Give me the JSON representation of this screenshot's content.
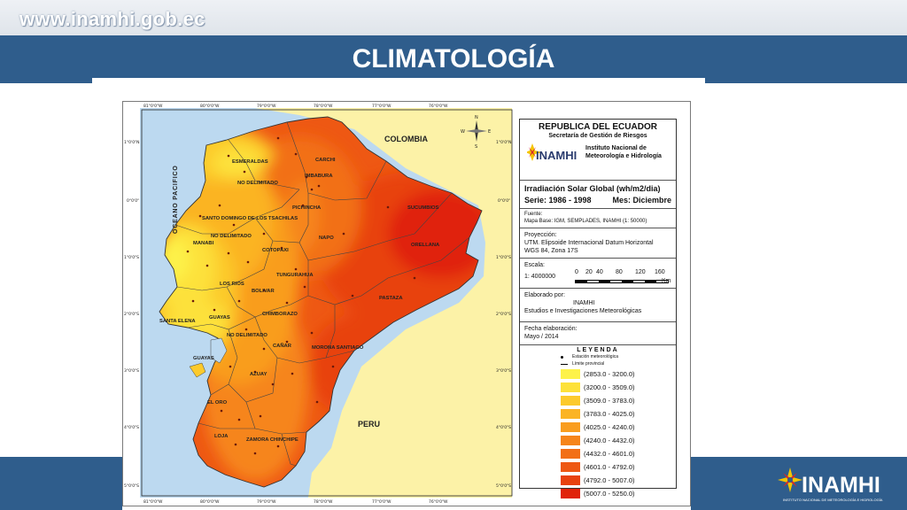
{
  "header": {
    "site_url": "www.inamhi.gob.ec",
    "title": "CLIMATOLOGÍA"
  },
  "footer_logo": {
    "text": "INAMHI",
    "subtext": "INSTITUTO NACIONAL DE METEOROLOGÍA E HIDROLOGÍA"
  },
  "map": {
    "country_labels": [
      "COLOMBIA",
      "PERU"
    ],
    "ocean_label": "OCEANO PACIFICO",
    "province_labels": [
      "ESMERALDAS",
      "CARCHI",
      "IMBABURA",
      "NO DELIMITADO",
      "PICHINCHA",
      "SANTO DOMINGO DE LOS TSACHILAS",
      "SUCUMBIOS",
      "MANABI",
      "NO DELIMITADO",
      "NAPO",
      "COTOPAXI",
      "ORELLANA",
      "LOS RIOS",
      "TUNGURAHUA",
      "BOLIVAR",
      "PASTAZA",
      "CHIMBORAZO",
      "SANTA ELENA",
      "GUAYAS",
      "NO DELIMITADO",
      "CAÑAR",
      "MORONA SANTIAGO",
      "GUAYAS",
      "AZUAY",
      "EL ORO",
      "LOJA",
      "ZAMORA CHINCHIPE"
    ],
    "top_ticks": [
      "81°0'0\"W",
      "80°0'0\"W",
      "79°0'0\"W",
      "78°0'0\"W",
      "77°0'0\"W",
      "76°0'0\"W"
    ],
    "side_ticks": [
      "1°0'0\"N",
      "0°0'0\"",
      "1°0'0\"S",
      "2°0'0\"S",
      "3°0'0\"S",
      "4°0'0\"S",
      "5°0'0\"S"
    ],
    "colors": {
      "sea": "#bcd9f0",
      "neighbor": "#fcf2a7",
      "ramp": [
        "#fdf24a",
        "#fde13a",
        "#fcca2c",
        "#fbb424",
        "#f99d1f",
        "#f6851b",
        "#f26f17",
        "#ee5813",
        "#e8420f",
        "#e0230a"
      ]
    }
  },
  "info_panel": {
    "republic": "REPUBLICA DEL ECUADOR",
    "secretariat": "Secretaría de Gestión de Riesgos",
    "logo_text": "INAMHI",
    "institute_1": "Instituto Nacional de",
    "institute_2": "Meteorología e Hidrología",
    "variable": "Irradiación Solar Global (wh/m2/dia)",
    "series": "Serie: 1986 - 1998",
    "month": "Mes: Diciembre",
    "source_label": "Fuente:",
    "source_text": "Mapa Base: IGM, SEMPLADES, INAMHI (1: 50000)",
    "projection_label": "Proyección:",
    "projection_1": "UTM. Elipsoide Internacional Datum Horizontal",
    "projection_2": "WGS 84, Zona 17S",
    "scale_label": "Escala:",
    "scale_value": "1: 4000000",
    "scale_ticks": [
      "0",
      "20",
      "40",
      "80",
      "120",
      "160"
    ],
    "scale_unit": "Km",
    "made_by_label": "Elaborado por:",
    "made_by_1": "INAMHI",
    "made_by_2": "Estudios e Investigaciones Meteorológicas",
    "date_label": "Fecha elaboración:",
    "date_value": "Mayo / 2014",
    "legend_title": "LEYENDA",
    "legend_station": "Estación meteorológica",
    "legend_boundary": "Límite provincial",
    "classes": [
      {
        "label": "(2853.0 - 3200.0)",
        "color": "#fdf24a"
      },
      {
        "label": "(3200.0 - 3509.0)",
        "color": "#fde13a"
      },
      {
        "label": "(3509.0 - 3783.0)",
        "color": "#fcca2c"
      },
      {
        "label": "(3783.0 - 4025.0)",
        "color": "#fbb424"
      },
      {
        "label": "(4025.0 - 4240.0)",
        "color": "#f99d1f"
      },
      {
        "label": "(4240.0 - 4432.0)",
        "color": "#f6851b"
      },
      {
        "label": "(4432.0 - 4601.0)",
        "color": "#f26f17"
      },
      {
        "label": "(4601.0 - 4792.0)",
        "color": "#ee5813"
      },
      {
        "label": "(4792.0 - 5007.0)",
        "color": "#e8420f"
      },
      {
        "label": "(5007.0 - 5250.0)",
        "color": "#e0230a"
      }
    ]
  }
}
